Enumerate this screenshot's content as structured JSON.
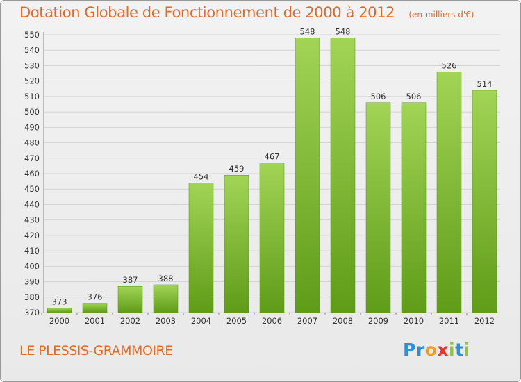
{
  "title": "Dotation Globale de Fonctionnement de 2000 à 2012",
  "units": "(en milliers d'€)",
  "location": "LE PLESSIS-GRAMMOIRE",
  "logo": {
    "letters": [
      "P",
      "r",
      "o",
      "x",
      "i",
      "t",
      "i"
    ],
    "colors": [
      "#2f8fd6",
      "#2f8fd6",
      "#f29a1d",
      "#e8332a",
      "#8cc63e",
      "#2f8fd6",
      "#8cc63e"
    ]
  },
  "colors": {
    "bar_top": "#a2d456",
    "bar_bottom": "#5f9c18",
    "accent": "#e06a2a"
  },
  "chart_data": {
    "type": "bar",
    "categories": [
      "2000",
      "2001",
      "2002",
      "2003",
      "2004",
      "2005",
      "2006",
      "2007",
      "2008",
      "2009",
      "2010",
      "2011",
      "2012"
    ],
    "values": [
      373,
      376,
      387,
      388,
      454,
      459,
      467,
      548,
      548,
      506,
      506,
      526,
      514
    ],
    "ylim": [
      370,
      550
    ],
    "yticks": [
      370,
      380,
      390,
      400,
      410,
      420,
      430,
      440,
      450,
      460,
      470,
      480,
      490,
      500,
      510,
      520,
      530,
      540,
      550
    ],
    "grid": true
  }
}
